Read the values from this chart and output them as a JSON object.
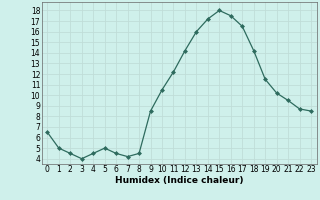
{
  "x": [
    0,
    1,
    2,
    3,
    4,
    5,
    6,
    7,
    8,
    9,
    10,
    11,
    12,
    13,
    14,
    15,
    16,
    17,
    18,
    19,
    20,
    21,
    22,
    23
  ],
  "y": [
    6.5,
    5.0,
    4.5,
    4.0,
    4.5,
    5.0,
    4.5,
    4.2,
    4.5,
    8.5,
    10.5,
    12.2,
    14.2,
    16.0,
    17.2,
    18.0,
    17.5,
    16.5,
    14.2,
    11.5,
    10.2,
    9.5,
    8.7,
    8.5
  ],
  "line_color": "#2e6b5e",
  "marker": "D",
  "marker_size": 2.0,
  "xlabel": "Humidex (Indice chaleur)",
  "bg_color": "#cff0eb",
  "grid_color": "#c0ddd8",
  "ylim": [
    3.5,
    18.8
  ],
  "xlim": [
    -0.5,
    23.5
  ],
  "yticks": [
    4,
    5,
    6,
    7,
    8,
    9,
    10,
    11,
    12,
    13,
    14,
    15,
    16,
    17,
    18
  ],
  "xtick_labels": [
    "0",
    "1",
    "2",
    "3",
    "4",
    "5",
    "6",
    "7",
    "8",
    "9",
    "10",
    "11",
    "12",
    "13",
    "14",
    "15",
    "16",
    "17",
    "18",
    "19",
    "20",
    "21",
    "22",
    "23"
  ],
  "tick_fontsize": 5.5,
  "xlabel_fontsize": 6.5
}
